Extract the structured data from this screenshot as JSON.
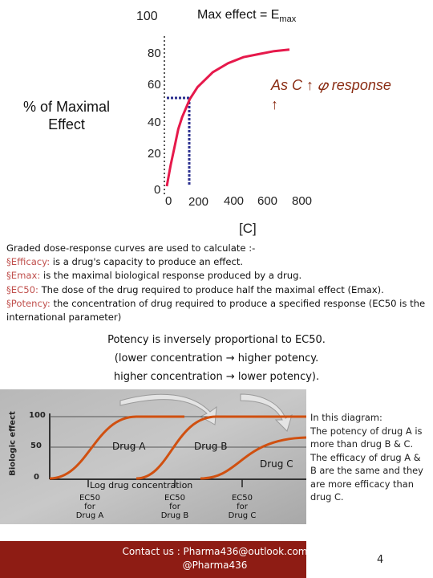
{
  "chart_data": {
    "type": "line",
    "title": "Max effect = E",
    "title_sub": "max",
    "ylabel_line1": "% of Maximal",
    "ylabel_line2": "Effect",
    "xlabel": "[C]",
    "y_ticks": [
      "100",
      "80",
      "60",
      "40",
      "20",
      "0"
    ],
    "x_ticks": [
      "0",
      "200",
      "400",
      "600",
      "800"
    ],
    "ylim": [
      0,
      100
    ],
    "xlim": [
      0,
      800
    ],
    "annotation_line1": "As C ↑ 𝜑 response",
    "annotation_line2": "↑",
    "reference_point": {
      "x": 150,
      "y": 60
    },
    "series": [
      {
        "values_x": [
          0,
          25,
          50,
          75,
          100,
          150,
          200,
          300,
          400,
          500,
          600,
          700,
          800
        ],
        "values_y": [
          0,
          14,
          26,
          38,
          46,
          58,
          66,
          76,
          82,
          86,
          88,
          90,
          91
        ]
      }
    ],
    "color": "#e6194b"
  },
  "text": {
    "intro": "Graded dose-response curves are used to calculate :-",
    "items": [
      {
        "bullet": "§",
        "term": "Efficacy:",
        "desc": " is a drug's capacity to produce an effect."
      },
      {
        "bullet": "§",
        "term": "Emax:",
        "desc": " is the maximal biological response produced by a drug."
      },
      {
        "bullet": "§",
        "term": "EC50:",
        "desc": " The dose of the drug required to produce half the maximal effect (Emax)."
      },
      {
        "bullet": "§",
        "term": "Potency:",
        "desc": " the concentration of drug required to produce a specified response (EC50 is the international parameter)"
      }
    ]
  },
  "potency": {
    "line1": "Potency is inversely proportional to EC50.",
    "line2": "(lower concentration → higher potency.",
    "line3": "higher concentration → lower potency)."
  },
  "photo_chart": {
    "ylabel": "Biologic effect",
    "y_ticks": [
      "100",
      "50",
      "0"
    ],
    "xlabel": "Log drug concentration",
    "curves": [
      "Drug A",
      "Drug B",
      "Drug C"
    ],
    "ec50_labels": [
      {
        "l1": "EC50",
        "l2": "for",
        "l3": "Drug A"
      },
      {
        "l1": "EC50",
        "l2": "for",
        "l3": "Drug B"
      },
      {
        "l1": "EC50",
        "l2": "for",
        "l3": "Drug C"
      }
    ]
  },
  "side_text": [
    "In this diagram:",
    "The potency of drug A is",
    "more than drug B & C.",
    "The efficacy of drug A &",
    "B are the same and they",
    "are more efficacy than",
    "drug C."
  ],
  "footer": {
    "line1": "Contact us : Pharma436@outlook.com",
    "line2": "@Pharma436",
    "page": "4",
    "bg_color": "#8e1c14"
  }
}
